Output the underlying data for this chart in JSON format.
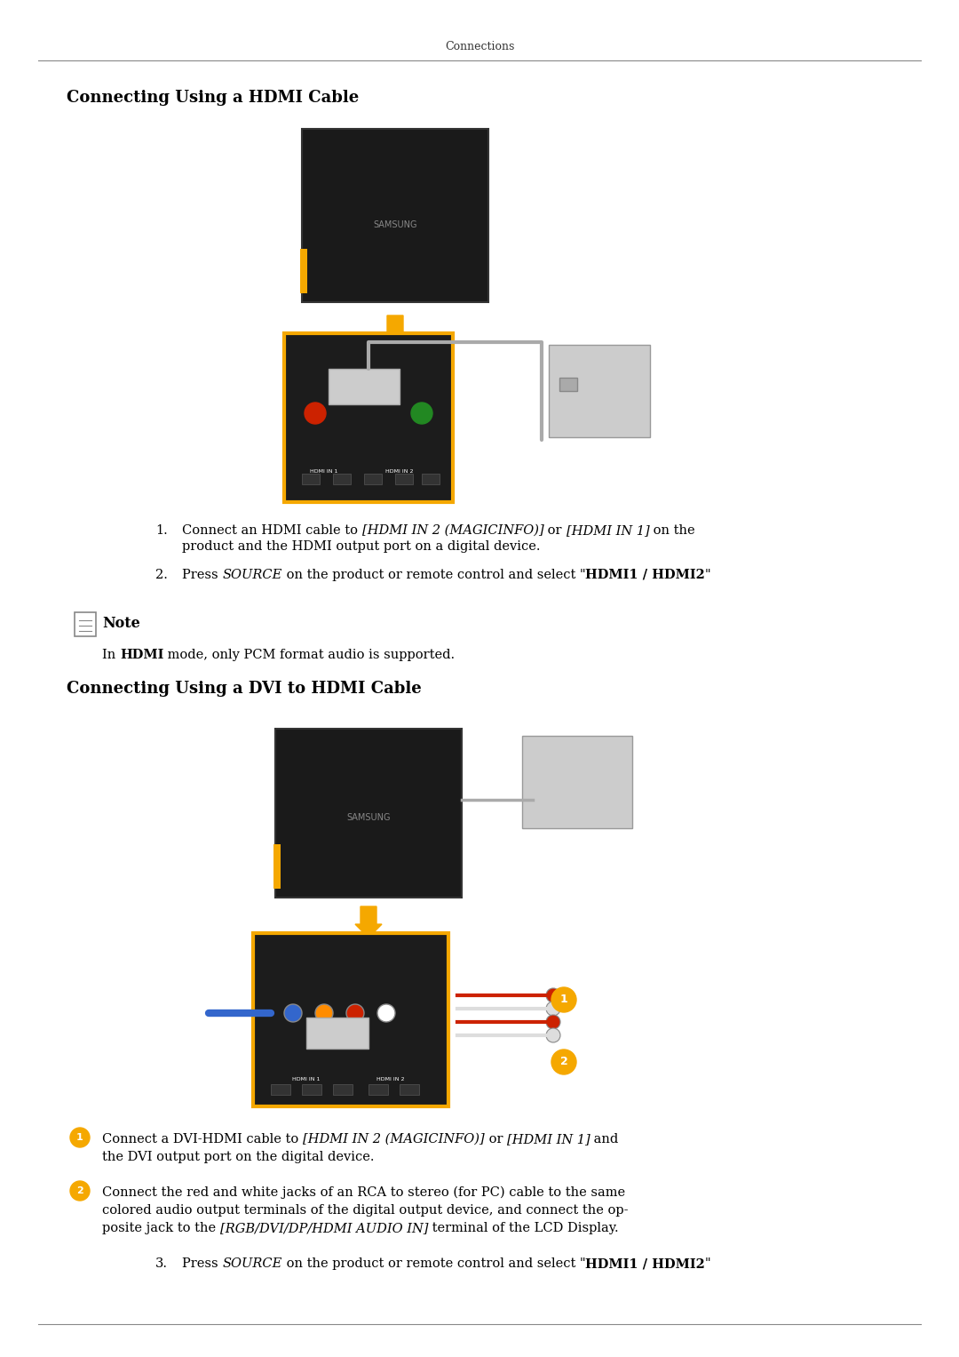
{
  "page_title": "Connections",
  "bg_color": "#ffffff",
  "section1_title": "Connecting Using a HDMI Cable",
  "section2_title": "Connecting Using a DVI to HDMI Cable",
  "step1_text1_normal": "Connect an HDMI cable to ",
  "step1_text1_italic": "[HDMI IN 2 (MAGICINFO)]",
  "step1_text1_normal2": " or ",
  "step1_text1_italic2": "[HDMI IN 1]",
  "step1_text1_normal3": " on the\nproduct and the HDMI output port on a digital device.",
  "step2_text1": "Press ",
  "step2_text1_italic": "SOURCE",
  "step2_text1_normal": " on the product or remote control and select \"",
  "step2_text1_bold": "HDMI1 / HDMI2",
  "step2_text1_end": "\"",
  "note_header": "Note",
  "note_text1": "In ",
  "note_text1_bold": "HDMI",
  "note_text1_normal": " mode, only PCM format audio is supported.",
  "dvi_step1_text_normal1": "Connect a DVI-HDMI cable to ",
  "dvi_step1_text_italic1": "[HDMI IN 2 (MAGICINFO)]",
  "dvi_step1_text_normal2": " or ",
  "dvi_step1_text_italic2": "[HDMI IN 1]",
  "dvi_step1_text_normal3": " and\nthe DVI output port on the digital device.",
  "dvi_step2_text_normal1": "Connect the red and white jacks of an RCA to stereo (for PC) cable to the same\ncolored audio output terminals of the digital output device, and connect the op-\nposite jack to the ",
  "dvi_step2_text_italic1": "[RGB/DVI/DP/HDMI AUDIO IN]",
  "dvi_step2_text_normal2": " terminal of the LCD Display.",
  "dvi_step3_text1": "Press ",
  "dvi_step3_text1_italic": "SOURCE",
  "dvi_step3_text1_normal": " on the product or remote control and select \"",
  "dvi_step3_text1_bold": "HDMI1 / HDMI2",
  "dvi_step3_text1_end": "\"",
  "line_color": "#888888",
  "title_line_color": "#333333",
  "text_color": "#000000",
  "accent_color": "#f5a800",
  "circle1_color": "#f5a800",
  "circle2_color": "#f5a800",
  "section_title_fontsize": 13,
  "body_fontsize": 10.5,
  "note_fontsize": 10.5
}
